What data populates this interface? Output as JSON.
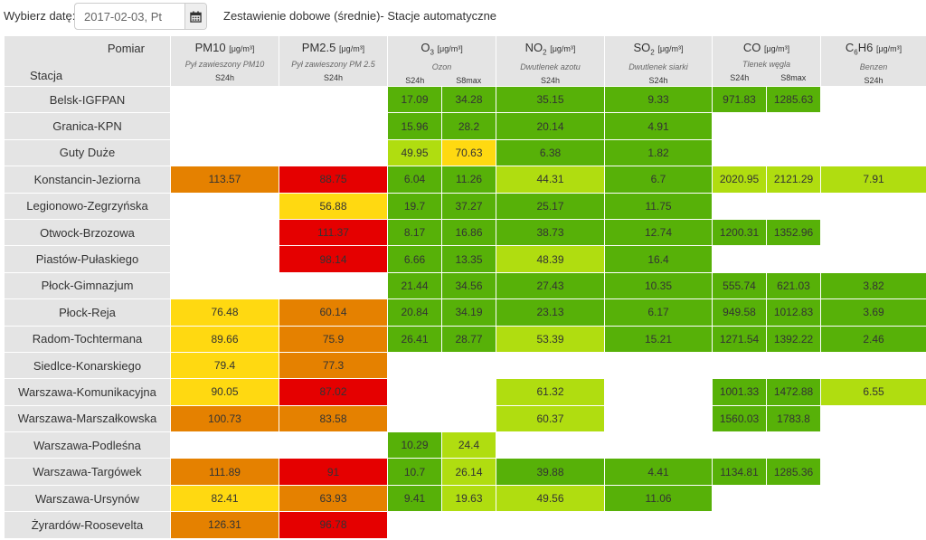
{
  "header": {
    "date_label": "Wybierz datę:",
    "date_value": "2017-02-03, Pt",
    "title": "Zestawienie dobowe (średnie)- Stacje automatyczne"
  },
  "table": {
    "corner": {
      "pomiar": "Pomiar",
      "stacja": "Stacja"
    },
    "pollutants": [
      {
        "name": "PM10",
        "sub": "",
        "name_rest": "",
        "unit": "[μg/m³]",
        "desc": "Pył zawieszony PM10",
        "averages": [
          "S24h"
        ]
      },
      {
        "name": "PM2.5",
        "sub": "",
        "name_rest": "",
        "unit": "[μg/m³]",
        "desc": "Pył zawieszony PM 2.5",
        "averages": [
          "S24h"
        ]
      },
      {
        "name": "O",
        "sub": "3",
        "name_rest": "",
        "unit": "[μg/m³]",
        "desc": "Ozon",
        "averages": [
          "S24h",
          "S8max"
        ]
      },
      {
        "name": "NO",
        "sub": "2",
        "name_rest": "",
        "unit": "[μg/m³]",
        "desc": "Dwutlenek azotu",
        "averages": [
          "S24h"
        ]
      },
      {
        "name": "SO",
        "sub": "2",
        "name_rest": "",
        "unit": "[μg/m³]",
        "desc": "Dwutlenek siarki",
        "averages": [
          "S24h"
        ]
      },
      {
        "name": "CO",
        "sub": "",
        "name_rest": "",
        "unit": "[μg/m³]",
        "desc": "Tlenek węgla",
        "averages": [
          "S24h",
          "S8max"
        ]
      },
      {
        "name": "C",
        "sub": "6",
        "name_rest": "H6",
        "unit": "[μg/m³]",
        "desc": "Benzen",
        "averages": [
          "S24h"
        ]
      }
    ],
    "colors": {
      "very_good": "#57b108",
      "good": "#b0dd10",
      "moderate": "#ffd911",
      "sufficient": "#e58100",
      "bad": "#e50000",
      "none": "#ffffff"
    },
    "rows": [
      {
        "station": "Belsk-IGFPAN",
        "cells": [
          [
            "",
            ""
          ],
          [
            "",
            ""
          ],
          [
            "17.09",
            "dg"
          ],
          [
            "34.28",
            "dg"
          ],
          [
            "35.15",
            "dg"
          ],
          [
            "9.33",
            "dg"
          ],
          [
            "971.83",
            "dg"
          ],
          [
            "1285.63",
            "dg"
          ],
          [
            "",
            ""
          ]
        ]
      },
      {
        "station": "Granica-KPN",
        "cells": [
          [
            "",
            ""
          ],
          [
            "",
            ""
          ],
          [
            "15.96",
            "dg"
          ],
          [
            "28.2",
            "dg"
          ],
          [
            "20.14",
            "dg"
          ],
          [
            "4.91",
            "dg"
          ],
          [
            "",
            ""
          ],
          [
            "",
            ""
          ],
          [
            "",
            ""
          ]
        ]
      },
      {
        "station": "Guty Duże",
        "cells": [
          [
            "",
            ""
          ],
          [
            "",
            ""
          ],
          [
            "49.95",
            "lg"
          ],
          [
            "70.63",
            "y"
          ],
          [
            "6.38",
            "dg"
          ],
          [
            "1.82",
            "dg"
          ],
          [
            "",
            ""
          ],
          [
            "",
            ""
          ],
          [
            "",
            ""
          ]
        ]
      },
      {
        "station": "Konstancin-Jeziorna",
        "cells": [
          [
            "113.57",
            "o"
          ],
          [
            "88.75",
            "r"
          ],
          [
            "6.04",
            "dg"
          ],
          [
            "11.26",
            "dg"
          ],
          [
            "44.31",
            "lg"
          ],
          [
            "6.7",
            "dg"
          ],
          [
            "2020.95",
            "lg"
          ],
          [
            "2121.29",
            "lg"
          ],
          [
            "7.91",
            "lg"
          ]
        ]
      },
      {
        "station": "Legionowo-Zegrzyńska",
        "cells": [
          [
            "",
            ""
          ],
          [
            "56.88",
            "y"
          ],
          [
            "19.7",
            "dg"
          ],
          [
            "37.27",
            "dg"
          ],
          [
            "25.17",
            "dg"
          ],
          [
            "11.75",
            "dg"
          ],
          [
            "",
            ""
          ],
          [
            "",
            ""
          ],
          [
            "",
            ""
          ]
        ]
      },
      {
        "station": "Otwock-Brzozowa",
        "cells": [
          [
            "",
            ""
          ],
          [
            "111.37",
            "r"
          ],
          [
            "8.17",
            "dg"
          ],
          [
            "16.86",
            "dg"
          ],
          [
            "38.73",
            "dg"
          ],
          [
            "12.74",
            "dg"
          ],
          [
            "1200.31",
            "dg"
          ],
          [
            "1352.96",
            "dg"
          ],
          [
            "",
            ""
          ]
        ]
      },
      {
        "station": "Piastów-Pułaskiego",
        "cells": [
          [
            "",
            ""
          ],
          [
            "98.14",
            "r"
          ],
          [
            "6.66",
            "dg"
          ],
          [
            "13.35",
            "dg"
          ],
          [
            "48.39",
            "lg"
          ],
          [
            "16.4",
            "dg"
          ],
          [
            "",
            ""
          ],
          [
            "",
            ""
          ],
          [
            "",
            ""
          ]
        ]
      },
      {
        "station": "Płock-Gimnazjum",
        "cells": [
          [
            "",
            ""
          ],
          [
            "",
            ""
          ],
          [
            "21.44",
            "dg"
          ],
          [
            "34.56",
            "dg"
          ],
          [
            "27.43",
            "dg"
          ],
          [
            "10.35",
            "dg"
          ],
          [
            "555.74",
            "dg"
          ],
          [
            "621.03",
            "dg"
          ],
          [
            "3.82",
            "dg"
          ]
        ]
      },
      {
        "station": "Płock-Reja",
        "cells": [
          [
            "76.48",
            "y"
          ],
          [
            "60.14",
            "o"
          ],
          [
            "20.84",
            "dg"
          ],
          [
            "34.19",
            "dg"
          ],
          [
            "23.13",
            "dg"
          ],
          [
            "6.17",
            "dg"
          ],
          [
            "949.58",
            "dg"
          ],
          [
            "1012.83",
            "dg"
          ],
          [
            "3.69",
            "dg"
          ]
        ]
      },
      {
        "station": "Radom-Tochtermana",
        "cells": [
          [
            "89.66",
            "y"
          ],
          [
            "75.9",
            "o"
          ],
          [
            "26.41",
            "dg"
          ],
          [
            "28.77",
            "dg"
          ],
          [
            "53.39",
            "lg"
          ],
          [
            "15.21",
            "dg"
          ],
          [
            "1271.54",
            "dg"
          ],
          [
            "1392.22",
            "dg"
          ],
          [
            "2.46",
            "dg"
          ]
        ]
      },
      {
        "station": "Siedlce-Konarskiego",
        "cells": [
          [
            "79.4",
            "y"
          ],
          [
            "77.3",
            "o"
          ],
          [
            "",
            ""
          ],
          [
            "",
            ""
          ],
          [
            "",
            ""
          ],
          [
            "",
            ""
          ],
          [
            "",
            ""
          ],
          [
            "",
            ""
          ],
          [
            "",
            ""
          ]
        ]
      },
      {
        "station": "Warszawa-Komunikacyjna",
        "cells": [
          [
            "90.05",
            "y"
          ],
          [
            "87.02",
            "r"
          ],
          [
            "",
            ""
          ],
          [
            "",
            ""
          ],
          [
            "61.32",
            "lg"
          ],
          [
            "",
            ""
          ],
          [
            "1001.33",
            "dg"
          ],
          [
            "1472.88",
            "dg"
          ],
          [
            "6.55",
            "lg"
          ]
        ]
      },
      {
        "station": "Warszawa-Marszałkowska",
        "cells": [
          [
            "100.73",
            "o"
          ],
          [
            "83.58",
            "o"
          ],
          [
            "",
            ""
          ],
          [
            "",
            ""
          ],
          [
            "60.37",
            "lg"
          ],
          [
            "",
            ""
          ],
          [
            "1560.03",
            "dg"
          ],
          [
            "1783.8",
            "dg"
          ],
          [
            "",
            ""
          ]
        ]
      },
      {
        "station": "Warszawa-Podleśna",
        "cells": [
          [
            "",
            ""
          ],
          [
            "",
            ""
          ],
          [
            "10.29",
            "dg"
          ],
          [
            "24.4",
            "lg"
          ],
          [
            "",
            ""
          ],
          [
            "",
            ""
          ],
          [
            "",
            ""
          ],
          [
            "",
            ""
          ],
          [
            "",
            ""
          ]
        ]
      },
      {
        "station": "Warszawa-Targówek",
        "cells": [
          [
            "111.89",
            "o"
          ],
          [
            "91",
            "r"
          ],
          [
            "10.7",
            "dg"
          ],
          [
            "26.14",
            "lg"
          ],
          [
            "39.88",
            "dg"
          ],
          [
            "4.41",
            "dg"
          ],
          [
            "1134.81",
            "dg"
          ],
          [
            "1285.36",
            "dg"
          ],
          [
            "",
            ""
          ]
        ]
      },
      {
        "station": "Warszawa-Ursynów",
        "cells": [
          [
            "82.41",
            "y"
          ],
          [
            "63.93",
            "o"
          ],
          [
            "9.41",
            "dg"
          ],
          [
            "19.63",
            "lg"
          ],
          [
            "49.56",
            "lg"
          ],
          [
            "11.06",
            "dg"
          ],
          [
            "",
            ""
          ],
          [
            "",
            ""
          ],
          [
            "",
            ""
          ]
        ]
      },
      {
        "station": "Żyrardów-Roosevelta",
        "cells": [
          [
            "126.31",
            "o"
          ],
          [
            "96.78",
            "r"
          ],
          [
            "",
            ""
          ],
          [
            "",
            ""
          ],
          [
            "",
            ""
          ],
          [
            "",
            ""
          ],
          [
            "",
            ""
          ],
          [
            "",
            ""
          ],
          [
            "",
            ""
          ]
        ]
      }
    ]
  }
}
